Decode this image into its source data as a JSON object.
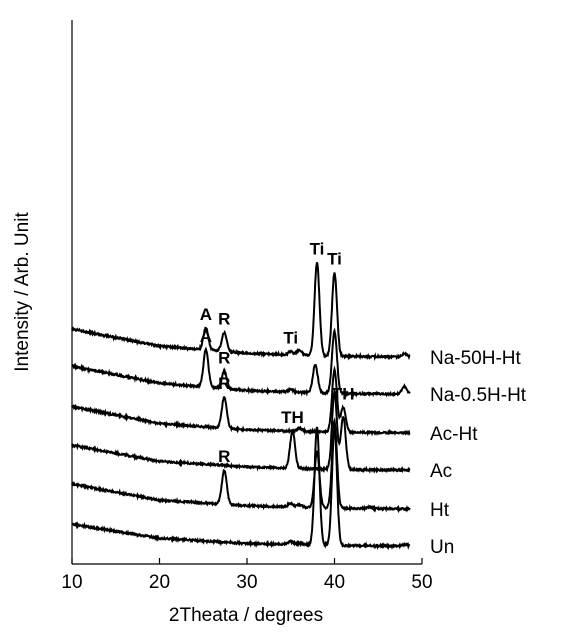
{
  "chart_data": {
    "type": "line",
    "title": "",
    "xlabel": "2Theata / degrees",
    "ylabel": "Intensity / Arb. Unit",
    "xlim": [
      10,
      50
    ],
    "x_ticks": [
      "10",
      "20",
      "30",
      "40",
      "50"
    ],
    "grid": false,
    "legend": "none",
    "series": [
      {
        "name": "Un",
        "offset": 0,
        "baseline": [
          [
            10,
            0.7
          ],
          [
            20,
            0.25
          ],
          [
            30,
            0.08
          ],
          [
            40,
            0.02
          ],
          [
            48,
            0.0
          ]
        ],
        "peaks": [
          [
            35.0,
            0.1
          ],
          [
            36.0,
            0.05
          ],
          [
            38.0,
            3.8
          ],
          [
            40.0,
            3.8
          ],
          [
            48.0,
            0.05
          ]
        ]
      },
      {
        "name": "Ht",
        "offset": 1.2,
        "baseline": [
          [
            10,
            0.8
          ],
          [
            20,
            0.28
          ],
          [
            30,
            0.1
          ],
          [
            40,
            0.02
          ],
          [
            48,
            0.0
          ]
        ],
        "peaks": [
          [
            27.4,
            1.1
          ],
          [
            35.0,
            0.12
          ],
          [
            36.0,
            0.08
          ],
          [
            38.0,
            1.8
          ],
          [
            40.0,
            2.8
          ],
          [
            44.0,
            0.05
          ]
        ]
      },
      {
        "name": "Ac",
        "offset": 2.45,
        "baseline": [
          [
            10,
            0.8
          ],
          [
            20,
            0.28
          ],
          [
            30,
            0.1
          ],
          [
            40,
            0.02
          ],
          [
            48,
            0.0
          ]
        ],
        "peaks": [
          [
            35.2,
            1.2
          ],
          [
            40.0,
            2.5
          ],
          [
            41.0,
            1.7
          ]
        ]
      },
      {
        "name": "Ac-Ht",
        "offset": 3.65,
        "baseline": [
          [
            10,
            0.85
          ],
          [
            20,
            0.3
          ],
          [
            30,
            0.1
          ],
          [
            40,
            0.02
          ],
          [
            48,
            0.0
          ]
        ],
        "peaks": [
          [
            27.4,
            1.0
          ],
          [
            36.0,
            0.1
          ],
          [
            40.0,
            2.0
          ],
          [
            41.0,
            0.8
          ]
        ]
      },
      {
        "name": "Na-0.5H-Ht",
        "offset": 4.9,
        "baseline": [
          [
            10,
            0.9
          ],
          [
            20,
            0.35
          ],
          [
            30,
            0.12
          ],
          [
            40,
            0.02
          ],
          [
            48,
            0.0
          ]
        ],
        "peaks": [
          [
            25.3,
            1.2
          ],
          [
            27.4,
            0.55
          ],
          [
            35.0,
            0.08
          ],
          [
            37.8,
            0.9
          ],
          [
            40.0,
            2.0
          ],
          [
            48.0,
            0.25
          ]
        ]
      },
      {
        "name": "Na-50H-Ht",
        "offset": 6.1,
        "baseline": [
          [
            10,
            0.9
          ],
          [
            20,
            0.35
          ],
          [
            30,
            0.12
          ],
          [
            40,
            0.02
          ],
          [
            48,
            0.0
          ]
        ],
        "peaks": [
          [
            25.3,
            0.7
          ],
          [
            27.4,
            0.6
          ],
          [
            35.0,
            0.1
          ],
          [
            36.0,
            0.15
          ],
          [
            38.0,
            3.0
          ],
          [
            40.0,
            2.7
          ],
          [
            48.0,
            0.1
          ]
        ]
      }
    ],
    "annotations": [
      {
        "text": "Ti",
        "x": 38.0,
        "series": "Na-50H-Ht"
      },
      {
        "text": "Ti",
        "x": 40.0,
        "series": "Na-50H-Ht"
      },
      {
        "text": "A",
        "x": 25.3,
        "series": "Na-50H-Ht"
      },
      {
        "text": "R",
        "x": 27.4,
        "series": "Na-50H-Ht"
      },
      {
        "text": "Ti",
        "x": 35.0,
        "series": "Na-50H-Ht"
      },
      {
        "text": "A",
        "x": 25.3,
        "series": "Na-0.5H-Ht"
      },
      {
        "text": "R",
        "x": 27.4,
        "series": "Na-0.5H-Ht"
      },
      {
        "text": "R",
        "x": 27.4,
        "series": "Ac-Ht"
      },
      {
        "text": "TH",
        "x": 41.0,
        "series": "Ac-Ht"
      },
      {
        "text": "TH",
        "x": 35.2,
        "series": "Ac"
      },
      {
        "text": "R",
        "x": 27.4,
        "series": "Ht"
      }
    ]
  }
}
